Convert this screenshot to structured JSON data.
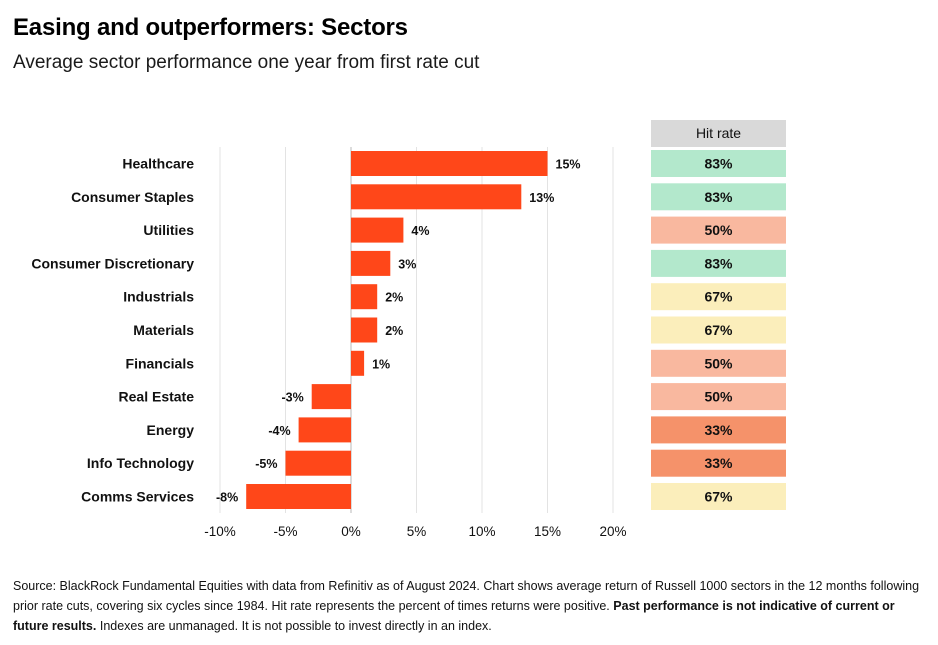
{
  "title": "Easing and outperformers: Sectors",
  "subtitle": "Average sector performance one year from first rate cut",
  "chart_data": {
    "type": "bar",
    "orientation": "horizontal",
    "categories": [
      "Healthcare",
      "Consumer Staples",
      "Utilities",
      "Consumer Discretionary",
      "Industrials",
      "Materials",
      "Financials",
      "Real Estate",
      "Energy",
      "Info Technology",
      "Comms Services"
    ],
    "values": [
      15,
      13,
      4,
      3,
      2,
      2,
      1,
      -3,
      -4,
      -5,
      -8
    ],
    "value_labels": [
      "15%",
      "13%",
      "4%",
      "3%",
      "2%",
      "2%",
      "1%",
      "-3%",
      "-4%",
      "-5%",
      "-8%"
    ],
    "xlim": [
      -10,
      20
    ],
    "x_ticks": [
      "-10%",
      "-5%",
      "0%",
      "5%",
      "10%",
      "15%",
      "20%"
    ],
    "grid": true,
    "bar_color": "#ff4719",
    "hit_rate": {
      "header": "Hit rate",
      "values": [
        "83%",
        "83%",
        "50%",
        "83%",
        "67%",
        "67%",
        "50%",
        "50%",
        "33%",
        "33%",
        "67%"
      ],
      "colors": [
        "#b3e8cc",
        "#b3e8cc",
        "#f9b89f",
        "#b3e8cc",
        "#fbeebb",
        "#fbeebb",
        "#f9b89f",
        "#f9b89f",
        "#f5926a",
        "#f5926a",
        "#fbeebb"
      ],
      "header_color": "#d9d9d9"
    }
  },
  "source": {
    "text": "Source: BlackRock Fundamental Equities with data from Refinitiv as of August 2024. Chart shows average return of Russell 1000 sectors in the 12 months following prior rate cuts, covering six cycles since 1984. Hit rate represents the percent of times returns were positive.",
    "bold": "Past performance is not indicative of current or future results.",
    "tail": "Indexes are unmanaged. It is not possible to invest directly in an index."
  }
}
